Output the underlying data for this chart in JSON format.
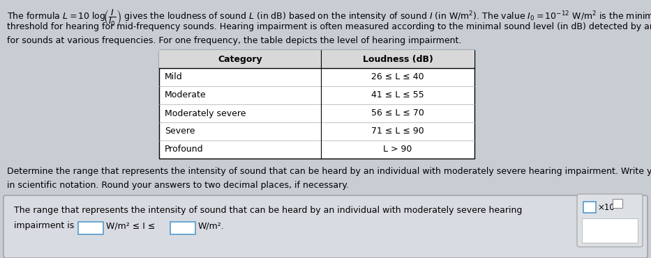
{
  "bg_color": "#c8cdd4",
  "table_bg": "#ffffff",
  "table_header_bg": "#d0d0d0",
  "answer_box_bg": "#dde0e5",
  "answer_box_border": "#aaaaaa",
  "input_box_border": "#5599cc",
  "right_panel_bg": "#dde0e5",
  "line1": "The formula $L = 10\\;\\mathrm{log}\\!\\left(\\dfrac{I}{I_0}\\right)$ gives the loudness of sound $L$ (in dB) based on the intensity of sound $I$ (in W/m$^2$). The value $I_0=10^{-12}$ W/m$^2$ is the minimal",
  "line2": "threshold for hearing for mid-frequency sounds. Hearing impairment is often measured according to the minimal sound level (in dB) detected by an individual",
  "line3": "for sounds at various frequencies. For one frequency, the table depicts the level of hearing impairment.",
  "table_headers": [
    "Category",
    "Loudness (dB)"
  ],
  "table_rows": [
    [
      "Mild",
      "26 ≤ L ≤ 40"
    ],
    [
      "Moderate",
      "41 ≤ L ≤ 55"
    ],
    [
      "Moderately severe",
      "56 ≤ L ≤ 70"
    ],
    [
      "Severe",
      "71 ≤ L ≤ 90"
    ],
    [
      "Profound",
      "L > 90"
    ]
  ],
  "det_line1": "Determine the range that represents the intensity of sound that can be heard by an individual with moderately severe hearing impairment. Write your answers",
  "det_line2": "in scientific notation. Round your answers to two decimal places, if necessary.",
  "ans_line1": "The range that represents the intensity of sound that can be heard by an individual with moderately severe hearing",
  "ans_prefix": "impairment is",
  "ans_mid": "W/m² ≤ I ≤",
  "ans_suffix": "W/m².",
  "fs_body": 9.0,
  "fs_table": 9.0
}
